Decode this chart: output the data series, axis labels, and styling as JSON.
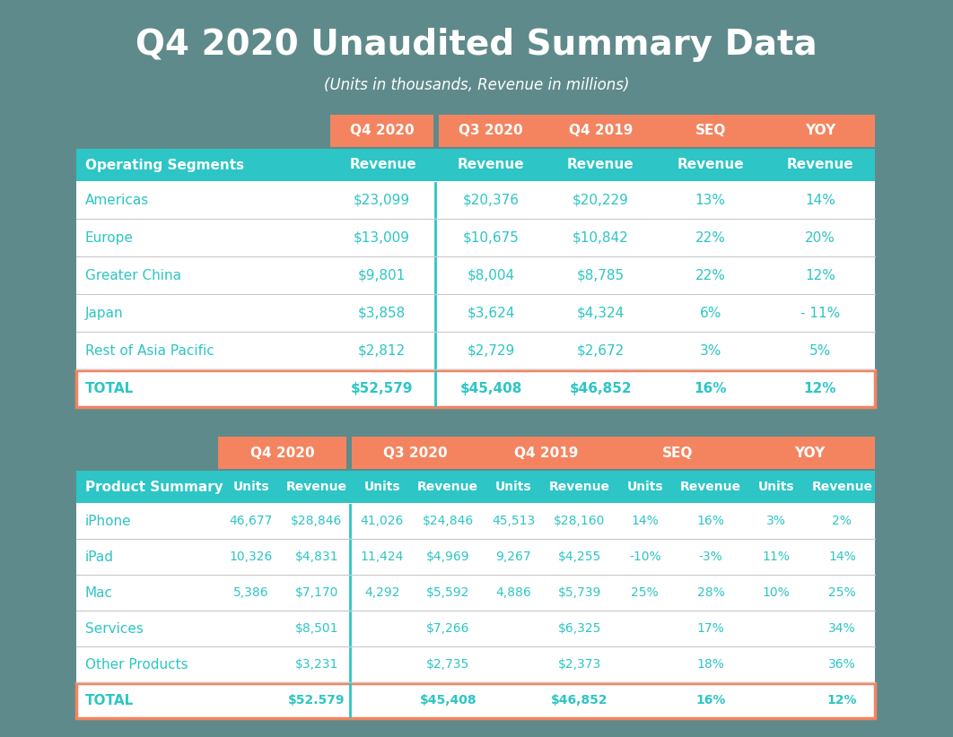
{
  "title": "Q4 2020 Unaudited Summary Data",
  "subtitle": "(Units in thousands, Revenue in millions)",
  "bg_color": "#5f8a8b",
  "orange": "#f4845f",
  "teal": "#2dc5c5",
  "white": "#ffffff",
  "table1": {
    "sub_headers": [
      "Operating Segments",
      "Revenue",
      "Revenue",
      "Revenue",
      "Revenue",
      "Revenue"
    ],
    "rows": [
      [
        "Americas",
        "$23,099",
        "$20,376",
        "$20,229",
        "13%",
        "14%"
      ],
      [
        "Europe",
        "$13,009",
        "$10,675",
        "$10,842",
        "22%",
        "20%"
      ],
      [
        "Greater China",
        "$9,801",
        "$8,004",
        "$8,785",
        "22%",
        "12%"
      ],
      [
        "Japan",
        "$3,858",
        "$3,624",
        "$4,324",
        "6%",
        "- 11%"
      ],
      [
        "Rest of Asia Pacific",
        "$2,812",
        "$2,729",
        "$2,672",
        "3%",
        "5%"
      ],
      [
        "TOTAL",
        "$52,579",
        "$45,408",
        "$46,852",
        "16%",
        "12%"
      ]
    ]
  },
  "table2": {
    "sub_headers": [
      "Product Summary",
      "Units",
      "Revenue",
      "Units",
      "Revenue",
      "Units",
      "Revenue",
      "Units",
      "Revenue",
      "Units",
      "Revenue"
    ],
    "rows": [
      [
        "iPhone",
        "46,677",
        "$28,846",
        "41,026",
        "$24,846",
        "45,513",
        "$28,160",
        "14%",
        "16%",
        "3%",
        "2%"
      ],
      [
        "iPad",
        "10,326",
        "$4,831",
        "11,424",
        "$4,969",
        "9,267",
        "$4,255",
        "-10%",
        "-3%",
        "11%",
        "14%"
      ],
      [
        "Mac",
        "5,386",
        "$7,170",
        "4,292",
        "$5,592",
        "4,886",
        "$5,739",
        "25%",
        "28%",
        "10%",
        "25%"
      ],
      [
        "Services",
        "",
        "$8,501",
        "",
        "$7,266",
        "",
        "$6,325",
        "",
        "17%",
        "",
        "34%"
      ],
      [
        "Other Products",
        "",
        "$3,231",
        "",
        "$2,735",
        "",
        "$2,373",
        "",
        "18%",
        "",
        "36%"
      ],
      [
        "TOTAL",
        "",
        "$52.579",
        "",
        "$45,408",
        "",
        "$46,852",
        "",
        "16%",
        "",
        "12%"
      ]
    ]
  }
}
